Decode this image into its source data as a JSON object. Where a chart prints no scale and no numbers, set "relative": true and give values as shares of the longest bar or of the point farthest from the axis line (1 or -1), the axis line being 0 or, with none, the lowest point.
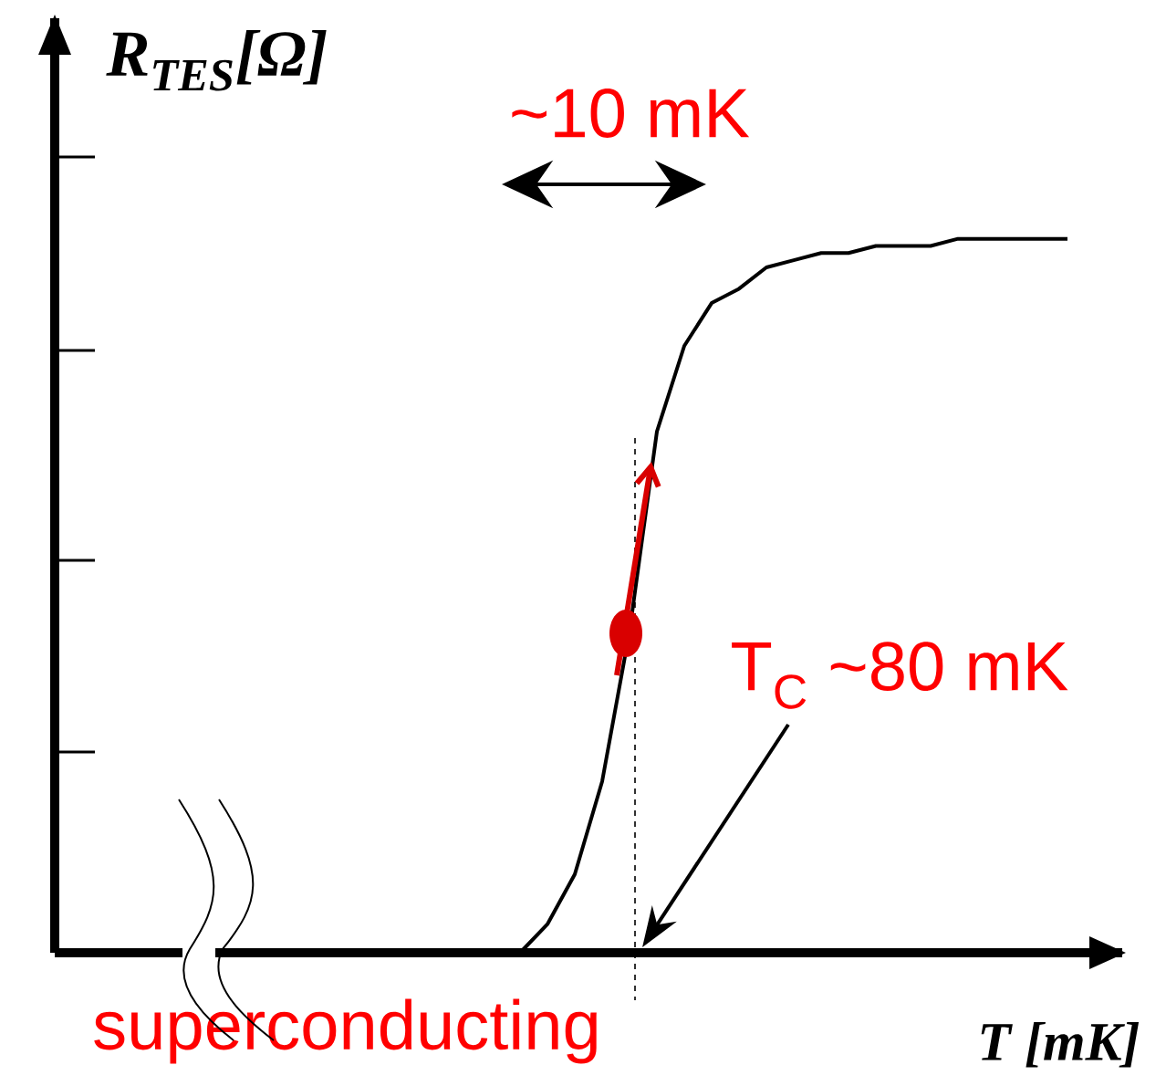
{
  "chart_data": {
    "type": "line",
    "relative": true,
    "xlabel": "T [mK]",
    "ylabel": "R$_{TES}$[Ω]",
    "categories": [
      null,
      null,
      null,
      null,
      null,
      null,
      null,
      null,
      null,
      null,
      null,
      null,
      null,
      null,
      null,
      null,
      null,
      null,
      null,
      null,
      null,
      null,
      null,
      null,
      null,
      null,
      null,
      null,
      null,
      null,
      null,
      null,
      null,
      null,
      null,
      null,
      null,
      null
    ],
    "series": [
      {
        "color": "#000000",
        "values": [
          0,
          0,
          0,
          0,
          0,
          0,
          0,
          0,
          0,
          0,
          0,
          0,
          0,
          0,
          0,
          0,
          0,
          0,
          0.04,
          0.11,
          0.24,
          0.45,
          0.73,
          0.85,
          0.91,
          0.93,
          0.96,
          0.97,
          0.98,
          0.98,
          0.99,
          0.99,
          0.99,
          1,
          1,
          1,
          1,
          1
        ]
      }
    ],
    "marker": "none",
    "line_style": "solid",
    "annotations": [
      "~10 mK",
      "T$_{C}$ ~80 mK",
      "superconducting"
    ]
  }
}
